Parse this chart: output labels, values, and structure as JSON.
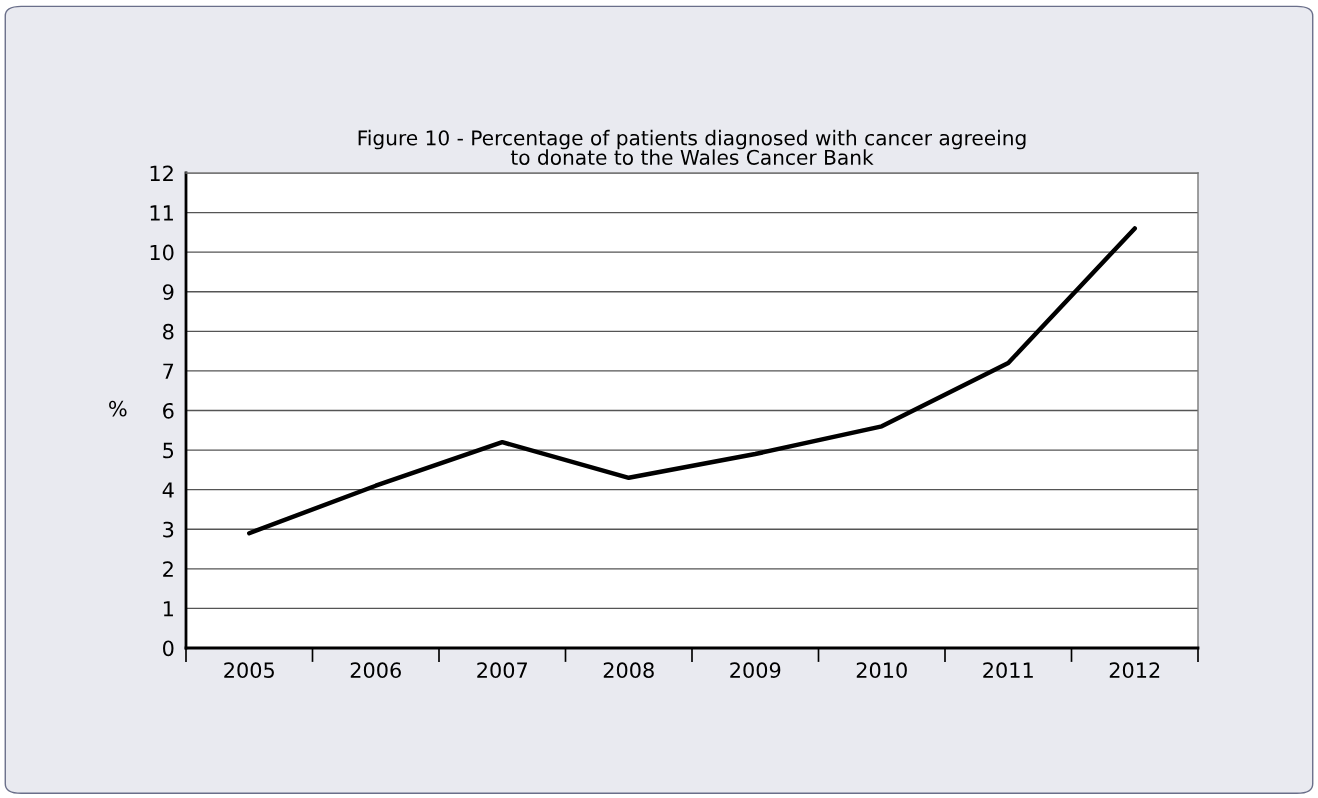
{
  "chart_data": {
    "type": "line",
    "title": "Figure 10 - Percentage of patients diagnosed with cancer agreeing\nto donate to the Wales Cancer Bank",
    "ylabel": "%",
    "categories": [
      "2005",
      "2006",
      "2007",
      "2008",
      "2009",
      "2010",
      "2011",
      "2012"
    ],
    "series": [
      {
        "color": "#000000",
        "values": [
          2.9,
          4.1,
          5.2,
          4.3,
          4.9,
          5.6,
          7.2,
          10.6
        ]
      }
    ],
    "ylim": [
      0,
      12
    ],
    "yticks": [
      0,
      1,
      2,
      3,
      4,
      5,
      6,
      7,
      8,
      9,
      10,
      11,
      12
    ],
    "grid": "y",
    "marker": "none",
    "line_style": "solid"
  }
}
